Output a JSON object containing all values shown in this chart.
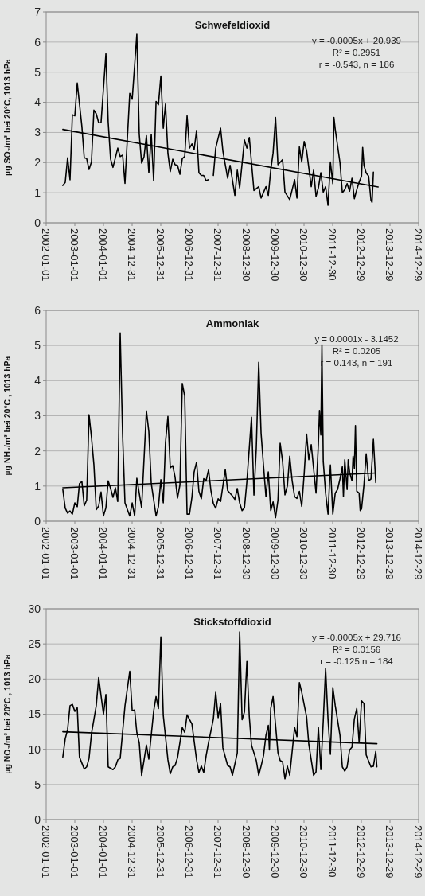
{
  "chart_data": [
    {
      "type": "line",
      "title": "Schwefeldioxid",
      "ylabel": "µg SO₂/m³ bei 20°C, 1013 hPa",
      "annotations": [
        "y = -0.0005x + 20.939",
        "R² = 0.2951",
        "r = -0.543, n = 186"
      ],
      "grid": "y",
      "line_style": "solid",
      "xlim": [
        "2002-01-01",
        "2014-12-29"
      ],
      "xticks": [
        "2002-01-01",
        "2003-01-01",
        "2004-01-01",
        "2004-12-31",
        "2005-12-31",
        "2006-12-31",
        "2007-12-31",
        "2008-12-30",
        "2009-12-30",
        "2010-12-30",
        "2011-12-30",
        "2012-12-29",
        "2013-12-29",
        "2014-12-29"
      ],
      "ylim": [
        0,
        7
      ],
      "yticks": [
        0,
        1,
        2,
        3,
        4,
        5,
        6,
        7
      ],
      "series": [
        {
          "color": "#000000",
          "x": [
            "2002-08-01",
            "2002-09-01",
            "2002-10-01",
            "2002-11-01",
            "2002-12-01",
            "2003-01-01",
            "2003-02-01",
            "2003-04-01",
            "2003-05-01",
            "2003-06-01",
            "2003-07-01",
            "2003-08-01",
            "2003-09-01",
            "2003-10-01",
            "2003-11-01",
            "2003-12-01",
            "2004-02-01",
            "2004-03-01",
            "2004-04-01",
            "2004-05-01",
            "2004-07-01",
            "2004-08-01",
            "2004-09-01",
            "2004-10-01",
            "2004-12-01",
            "2005-01-01",
            "2005-03-01",
            "2005-04-01",
            "2005-05-01",
            "2005-06-01",
            "2005-07-01",
            "2005-08-01",
            "2005-09-01",
            "2005-10-01",
            "2005-11-01",
            "2005-12-01",
            "2006-01-01",
            "2006-02-01",
            "2006-03-01",
            "2006-04-01",
            "2006-05-01",
            "2006-06-01",
            "2006-07-01",
            "2006-08-01",
            "2006-09-01",
            "2006-10-01",
            "2006-11-01",
            "2006-12-01",
            "2007-01-01",
            "2007-02-01",
            "2007-03-01",
            "2007-04-01",
            "2007-05-01",
            "2007-06-01",
            "2007-07-01",
            "2007-08-01",
            "2007-09-01",
            "2007-10-01",
            "2007-11-01",
            "2007-12-01",
            "2008-02-01",
            "2008-03-01",
            "2008-05-01",
            "2008-06-01",
            "2008-08-01",
            "2008-09-01",
            "2008-10-01",
            "2008-12-01",
            "2009-01-01",
            "2009-02-01",
            "2009-04-01",
            "2009-06-01",
            "2009-07-01",
            "2009-09-01",
            "2009-10-01",
            "2009-11-01",
            "2009-12-01",
            "2010-01-01",
            "2010-02-01",
            "2010-04-01",
            "2010-05-01",
            "2010-07-01",
            "2010-09-01",
            "2010-10-01",
            "2010-11-01",
            "2010-12-01",
            "2011-01-01",
            "2011-02-01",
            "2011-04-01",
            "2011-05-01",
            "2011-06-01",
            "2011-07-01",
            "2011-08-01",
            "2011-09-01",
            "2011-10-01",
            "2011-11-01",
            "2011-12-01",
            "2012-01-01",
            "2012-01-15",
            "2012-02-01",
            "2012-04-01",
            "2012-05-01",
            "2012-06-01",
            "2012-07-01",
            "2012-08-01",
            "2012-09-01",
            "2012-10-01",
            "2012-11-01",
            "2012-12-01",
            "2013-01-01",
            "2013-01-15",
            "2013-02-01",
            "2013-03-01",
            "2013-04-01",
            "2013-05-01",
            "2013-05-15",
            "2013-06-01"
          ],
          "values": [
            1.24,
            1.34,
            2.16,
            1.43,
            3.59,
            3.55,
            4.64,
            3.2,
            2.16,
            2.13,
            1.77,
            2.02,
            3.74,
            3.62,
            3.32,
            3.32,
            5.61,
            3.35,
            2.11,
            1.84,
            2.48,
            2.2,
            2.25,
            1.31,
            4.3,
            4.1,
            6.26,
            2.94,
            1.98,
            2.2,
            2.89,
            1.66,
            2.94,
            1.4,
            4.03,
            3.92,
            4.87,
            3.14,
            3.94,
            2.3,
            1.7,
            2.11,
            1.93,
            1.91,
            1.61,
            2.13,
            2.2,
            3.55,
            2.48,
            2.62,
            2.43,
            3.07,
            1.66,
            1.57,
            1.57,
            1.4,
            1.43,
            null,
            1.57,
            2.48,
            3.14,
            2.39,
            1.48,
            1.91,
            0.91,
            1.75,
            1.16,
            2.75,
            2.48,
            2.83,
            1.07,
            1.2,
            0.82,
            1.2,
            0.91,
            1.75,
            2.32,
            3.5,
            1.93,
            2.1,
            1.02,
            0.77,
            1.43,
            0.82,
            2.52,
            2.02,
            2.7,
            2.39,
            1.2,
            1.75,
            0.88,
            1.16,
            1.66,
            1.02,
            1.2,
            0.58,
            2.02,
            1.3,
            3.5,
            3.1,
            2.0,
            1.0,
            1.1,
            1.3,
            1.05,
            1.48,
            0.8,
            1.1,
            1.35,
            1.55,
            2.5,
            1.9,
            1.65,
            1.55,
            0.75,
            0.68,
            1.68
          ]
        },
        {
          "type": "line",
          "color": "#000000",
          "x": [
            "2002-08-01",
            "2013-08-01"
          ],
          "values": [
            3.1,
            1.19
          ]
        }
      ]
    },
    {
      "type": "line",
      "title": "Ammoniak",
      "ylabel": "µg NH₃/m³ bei 20°C , 1013 hPa",
      "annotations": [
        "y = 0.0001x - 3.1452",
        "R² = 0.0205",
        "r = 0.143,  n = 191"
      ],
      "grid": "y",
      "line_style": "solid",
      "xlim": [
        "2002-01-01",
        "2014-12-29"
      ],
      "xticks": [
        "2002-01-01",
        "2003-01-01",
        "2004-01-01",
        "2004-12-31",
        "2005-12-31",
        "2006-12-31",
        "2007-12-31",
        "2008-12-30",
        "2009-12-30",
        "2010-12-30",
        "2011-12-30",
        "2012-12-29",
        "2013-12-29",
        "2014-12-29"
      ],
      "ylim": [
        0,
        6
      ],
      "yticks": [
        0,
        1,
        2,
        3,
        4,
        5,
        6
      ],
      "series": [
        {
          "color": "#000000",
          "x": [
            "2002-08-01",
            "2002-09-01",
            "2002-10-01",
            "2002-11-01",
            "2002-12-01",
            "2003-01-01",
            "2003-02-01",
            "2003-03-01",
            "2003-04-01",
            "2003-05-01",
            "2003-06-01",
            "2003-07-01",
            "2003-08-01",
            "2003-09-01",
            "2003-10-01",
            "2003-11-01",
            "2003-12-01",
            "2004-01-01",
            "2004-02-01",
            "2004-03-01",
            "2004-04-01",
            "2004-05-01",
            "2004-06-01",
            "2004-07-01",
            "2004-08-01",
            "2004-09-01",
            "2004-10-01",
            "2004-11-01",
            "2004-12-01",
            "2005-01-01",
            "2005-02-01",
            "2005-03-01",
            "2005-05-01",
            "2005-07-01",
            "2005-08-01",
            "2005-09-01",
            "2005-11-01",
            "2005-12-01",
            "2006-01-01",
            "2006-02-01",
            "2006-03-01",
            "2006-04-01",
            "2006-05-01",
            "2006-06-01",
            "2006-07-01",
            "2006-08-01",
            "2006-09-01",
            "2006-10-01",
            "2006-11-01",
            "2006-12-01",
            "2007-01-01",
            "2007-02-01",
            "2007-03-01",
            "2007-04-01",
            "2007-05-01",
            "2007-06-01",
            "2007-07-01",
            "2007-08-01",
            "2007-09-01",
            "2007-10-01",
            "2007-11-01",
            "2007-12-01",
            "2008-01-01",
            "2008-02-01",
            "2008-04-01",
            "2008-05-01",
            "2008-07-01",
            "2008-08-01",
            "2008-09-01",
            "2008-10-01",
            "2008-11-01",
            "2008-12-01",
            "2009-01-01",
            "2009-03-01",
            "2009-04-01",
            "2009-05-01",
            "2009-06-01",
            "2009-07-01",
            "2009-08-01",
            "2009-09-01",
            "2009-10-01",
            "2009-11-01",
            "2009-12-01",
            "2010-01-01",
            "2010-02-01",
            "2010-03-01",
            "2010-04-01",
            "2010-05-01",
            "2010-06-01",
            "2010-07-01",
            "2010-08-01",
            "2010-09-01",
            "2010-10-01",
            "2010-11-01",
            "2010-12-01",
            "2011-01-01",
            "2011-02-01",
            "2011-03-01",
            "2011-04-01",
            "2011-05-01",
            "2011-06-01",
            "2011-07-01",
            "2011-07-15",
            "2011-08-01",
            "2011-08-15",
            "2011-09-01",
            "2011-10-01",
            "2011-11-01",
            "2011-12-01",
            "2012-01-01",
            "2012-02-01",
            "2012-03-01",
            "2012-04-01",
            "2012-05-01",
            "2012-05-15",
            "2012-06-01",
            "2012-07-01",
            "2012-07-15",
            "2012-08-01",
            "2012-09-01",
            "2012-09-15",
            "2012-10-01",
            "2012-10-15",
            "2012-11-01",
            "2012-12-01",
            "2012-12-15",
            "2013-01-01",
            "2013-02-01",
            "2013-03-01",
            "2013-04-01",
            "2013-05-01",
            "2013-06-01",
            "2013-07-01"
          ],
          "values": [
            0.9,
            0.37,
            0.23,
            0.29,
            0.2,
            0.52,
            0.41,
            1.07,
            1.13,
            0.44,
            0.6,
            3.03,
            2.39,
            1.61,
            0.33,
            0.43,
            0.83,
            0.15,
            0.38,
            1.15,
            0.93,
            0.68,
            0.95,
            0.56,
            5.36,
            2.43,
            0.52,
            0.33,
            0.15,
            0.52,
            0.15,
            1.22,
            0.38,
            3.14,
            2.55,
            1.07,
            0.15,
            0.41,
            1.18,
            0.52,
            2.24,
            2.98,
            1.52,
            1.58,
            1.26,
            0.66,
            1.03,
            3.92,
            3.56,
            0.2,
            0.2,
            0.68,
            1.4,
            1.68,
            0.85,
            0.64,
            1.21,
            1.16,
            1.46,
            0.87,
            0.5,
            0.37,
            0.64,
            0.56,
            1.47,
            0.87,
            0.72,
            0.62,
            0.93,
            0.52,
            0.3,
            0.38,
            1.13,
            2.96,
            0.74,
            2.08,
            4.52,
            2.5,
            1.58,
            0.7,
            1.4,
            0.3,
            0.55,
            0.1,
            0.6,
            2.22,
            1.7,
            0.75,
            1.0,
            1.85,
            1.15,
            0.7,
            0.65,
            0.85,
            0.42,
            1.35,
            2.48,
            1.75,
            2.18,
            1.5,
            0.8,
            2.2,
            3.15,
            2.45,
            5.02,
            1.7,
            0.8,
            0.2,
            1.6,
            0.2,
            0.8,
            0.9,
            1.2,
            1.55,
            0.7,
            1.75,
            0.9,
            1.75,
            1.4,
            1.15,
            1.85,
            1.5,
            2.72,
            0.85,
            0.8,
            0.3,
            0.35,
            1.05,
            1.92,
            1.15,
            1.2,
            2.33,
            1.1
          ]
        },
        {
          "type": "line",
          "color": "#000000",
          "x": [
            "2002-08-01",
            "2013-07-01"
          ],
          "values": [
            0.95,
            1.37
          ]
        }
      ]
    },
    {
      "type": "line",
      "title": "Stickstoffdioxid",
      "ylabel": "µg NO₂/m³ bei 20°C , 1013 hPa",
      "annotations": [
        "y = -0.0005x + 29.716",
        "R² = 0.0156",
        "r = -0.125 n = 184"
      ],
      "grid": "y",
      "line_style": "solid",
      "xlim": [
        "2002-01-01",
        "2014-12-29"
      ],
      "xticks": [
        "2002-01-01",
        "2003-01-01",
        "2004-01-01",
        "2004-12-31",
        "2005-12-31",
        "2006-12-31",
        "2007-12-31",
        "2008-12-30",
        "2009-12-30",
        "2010-12-30",
        "2011-12-30",
        "2012-12-29",
        "2013-12-29",
        "2014-12-29"
      ],
      "ylim": [
        0,
        30
      ],
      "yticks": [
        0,
        5,
        10,
        15,
        20,
        25,
        30
      ],
      "series": [
        {
          "color": "#000000",
          "x": [
            "2002-08-01",
            "2002-09-01",
            "2002-10-01",
            "2002-11-01",
            "2002-12-01",
            "2003-01-01",
            "2003-02-01",
            "2003-03-01",
            "2003-05-01",
            "2003-06-01",
            "2003-07-01",
            "2003-08-01",
            "2003-10-01",
            "2003-11-01",
            "2004-01-01",
            "2004-02-01",
            "2004-03-01",
            "2004-05-01",
            "2004-06-01",
            "2004-07-01",
            "2004-08-01",
            "2004-10-01",
            "2004-12-01",
            "2005-01-01",
            "2005-02-01",
            "2005-03-01",
            "2005-04-01",
            "2005-05-01",
            "2005-07-01",
            "2005-08-01",
            "2005-10-01",
            "2005-11-01",
            "2005-12-01",
            "2006-01-01",
            "2006-02-01",
            "2006-04-01",
            "2006-05-01",
            "2006-06-01",
            "2006-07-01",
            "2006-08-01",
            "2006-10-01",
            "2006-11-01",
            "2006-12-01",
            "2007-02-01",
            "2007-04-01",
            "2007-05-01",
            "2007-06-01",
            "2007-07-01",
            "2007-08-01",
            "2007-09-01",
            "2007-11-01",
            "2007-12-01",
            "2008-01-01",
            "2008-02-01",
            "2008-03-01",
            "2008-05-01",
            "2008-06-01",
            "2008-07-01",
            "2008-09-01",
            "2008-10-01",
            "2008-11-01",
            "2008-12-01",
            "2009-01-01",
            "2009-02-01",
            "2009-03-01",
            "2009-05-01",
            "2009-06-01",
            "2009-07-01",
            "2009-08-01",
            "2009-09-01",
            "2009-10-01",
            "2009-10-15",
            "2009-11-01",
            "2009-12-01",
            "2010-02-01",
            "2010-03-01",
            "2010-04-01",
            "2010-05-01",
            "2010-06-01",
            "2010-07-01",
            "2010-09-01",
            "2010-10-01",
            "2010-11-01",
            "2010-12-01",
            "2011-02-01",
            "2011-03-01",
            "2011-04-01",
            "2011-05-01",
            "2011-06-01",
            "2011-07-01",
            "2011-08-01",
            "2011-09-01",
            "2011-10-01",
            "2011-11-01",
            "2011-12-01",
            "2012-01-01",
            "2012-02-01",
            "2012-04-01",
            "2012-05-01",
            "2012-06-01",
            "2012-07-01",
            "2012-08-01",
            "2012-09-01",
            "2012-10-01",
            "2012-11-01",
            "2012-12-01",
            "2013-01-01",
            "2013-02-01",
            "2013-03-01",
            "2013-05-01",
            "2013-06-01",
            "2013-07-01",
            "2013-07-15"
          ],
          "values": [
            8.9,
            11.5,
            12.8,
            16.2,
            16.4,
            15.4,
            15.9,
            8.9,
            7.2,
            7.5,
            8.7,
            12.2,
            16.2,
            20.2,
            15.0,
            17.8,
            7.5,
            7.1,
            7.5,
            8.5,
            8.7,
            16.2,
            21.1,
            15.5,
            15.6,
            12.4,
            10.9,
            6.3,
            10.6,
            8.6,
            15.4,
            17.5,
            15.8,
            26.0,
            14.8,
            8.5,
            6.5,
            7.5,
            7.7,
            8.8,
            13.1,
            12.4,
            14.9,
            13.6,
            8.5,
            6.7,
            7.6,
            6.7,
            9.1,
            11.0,
            14.3,
            18.1,
            14.5,
            16.5,
            10.2,
            7.7,
            7.5,
            6.3,
            9.5,
            26.7,
            14.2,
            15.3,
            22.5,
            14.6,
            10.6,
            8.4,
            6.3,
            7.6,
            9.1,
            12.0,
            13.4,
            9.9,
            15.8,
            17.5,
            9.5,
            8.4,
            8.2,
            5.8,
            7.6,
            6.3,
            13.1,
            11.8,
            19.5,
            18.1,
            14.6,
            10.7,
            8.5,
            6.3,
            6.8,
            13.1,
            7.1,
            14.0,
            21.5,
            14.2,
            9.3,
            18.8,
            16.2,
            12.0,
            7.5,
            6.9,
            7.5,
            9.9,
            10.3,
            14.3,
            15.8,
            11.0,
            16.9,
            16.5,
            9.2,
            7.5,
            7.6,
            9.7,
            7.5
          ]
        },
        {
          "type": "line",
          "color": "#000000",
          "x": [
            "2002-08-01",
            "2013-07-15"
          ],
          "values": [
            12.5,
            10.8
          ]
        }
      ]
    }
  ]
}
